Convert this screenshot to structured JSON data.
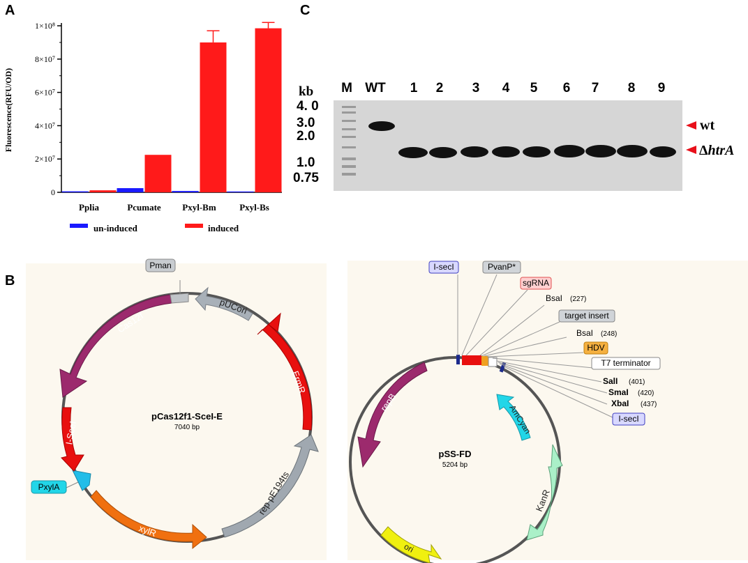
{
  "panels": {
    "a": "A",
    "b": "B",
    "c": "C"
  },
  "chart_data": {
    "type": "bar",
    "categories": [
      "Pplia",
      "Pcumate",
      "Pxyl-Bm",
      "Pxyl-Bs"
    ],
    "series": [
      {
        "name": "un-induced",
        "color": "#1a1aff",
        "values": [
          600000,
          2500000,
          800000,
          500000
        ],
        "errors": [
          0,
          0,
          0,
          0
        ]
      },
      {
        "name": "induced",
        "color": "#ff1a1a",
        "values": [
          1200000,
          22500000,
          90000000,
          98500000
        ],
        "errors": [
          0,
          0,
          7000000,
          3500000
        ]
      }
    ],
    "ylabel": "Fluorescence(RFU/OD)",
    "ylim": [
      0,
      100000000
    ],
    "yticks": [
      {
        "value": 0,
        "label": "0"
      },
      {
        "value": 20000000,
        "label": "2×10⁷"
      },
      {
        "value": 40000000,
        "label": "4×10⁷"
      },
      {
        "value": 60000000,
        "label": "6×10⁷"
      },
      {
        "value": 80000000,
        "label": "8×10⁷"
      },
      {
        "value": 100000000,
        "label": "1×10⁸"
      }
    ],
    "legend_position": "bottom"
  },
  "gel": {
    "size_unit": "kb",
    "lane_labels": [
      "M",
      "WT",
      "1",
      "2",
      "3",
      "4",
      "5",
      "6",
      "7",
      "8",
      "9"
    ],
    "ladder_labels": [
      "4. 0",
      "3.0",
      "2.0",
      "1.0",
      "0.75"
    ],
    "wt_band_label": "wt",
    "mutant_band_label_prefix": "Δ",
    "mutant_band_label_gene": "htrA"
  },
  "plasmid1": {
    "name": "pCas12f1-SceI-E",
    "size": "7040 bp",
    "features": [
      {
        "label": "Cas12f",
        "color": "#9c2a6d"
      },
      {
        "label": "pUCori",
        "color": "#a8b0b8"
      },
      {
        "label": "ErmR",
        "color": "#e8100f"
      },
      {
        "label": "rep pE194ts",
        "color": "#a0a8b0"
      },
      {
        "label": "xylR",
        "color": "#f07010"
      },
      {
        "label": "I-SceI",
        "color": "#e8100f"
      },
      {
        "label": "PxylA",
        "color": "#22bde8"
      }
    ],
    "callouts": [
      "Pman",
      "PxylA"
    ]
  },
  "plasmid2": {
    "name": "pSS-FD",
    "size": "5204 bp",
    "features": [
      {
        "label": "repB",
        "color": "#9c2a6d"
      },
      {
        "label": "AmCyan",
        "color": "#22d6e8"
      },
      {
        "label": "KanR",
        "color": "#aaf0c8"
      },
      {
        "label": "ori",
        "color": "#f0f010"
      }
    ],
    "annotations": [
      {
        "name": "I-secI",
        "pos": ""
      },
      {
        "name": "PvanP*",
        "pos": ""
      },
      {
        "name": "sgRNA",
        "pos": ""
      },
      {
        "name": "BsaI",
        "pos": "(227)"
      },
      {
        "name": "target insert",
        "pos": ""
      },
      {
        "name": "BsaI",
        "pos": "(248)"
      },
      {
        "name": "HDV",
        "pos": ""
      },
      {
        "name": "T7 terminator",
        "pos": ""
      },
      {
        "name": "SalI",
        "pos": "(401)"
      },
      {
        "name": "SmaI",
        "pos": "(420)"
      },
      {
        "name": "XbaI",
        "pos": "(437)"
      },
      {
        "name": "I-secI",
        "pos": ""
      }
    ]
  }
}
